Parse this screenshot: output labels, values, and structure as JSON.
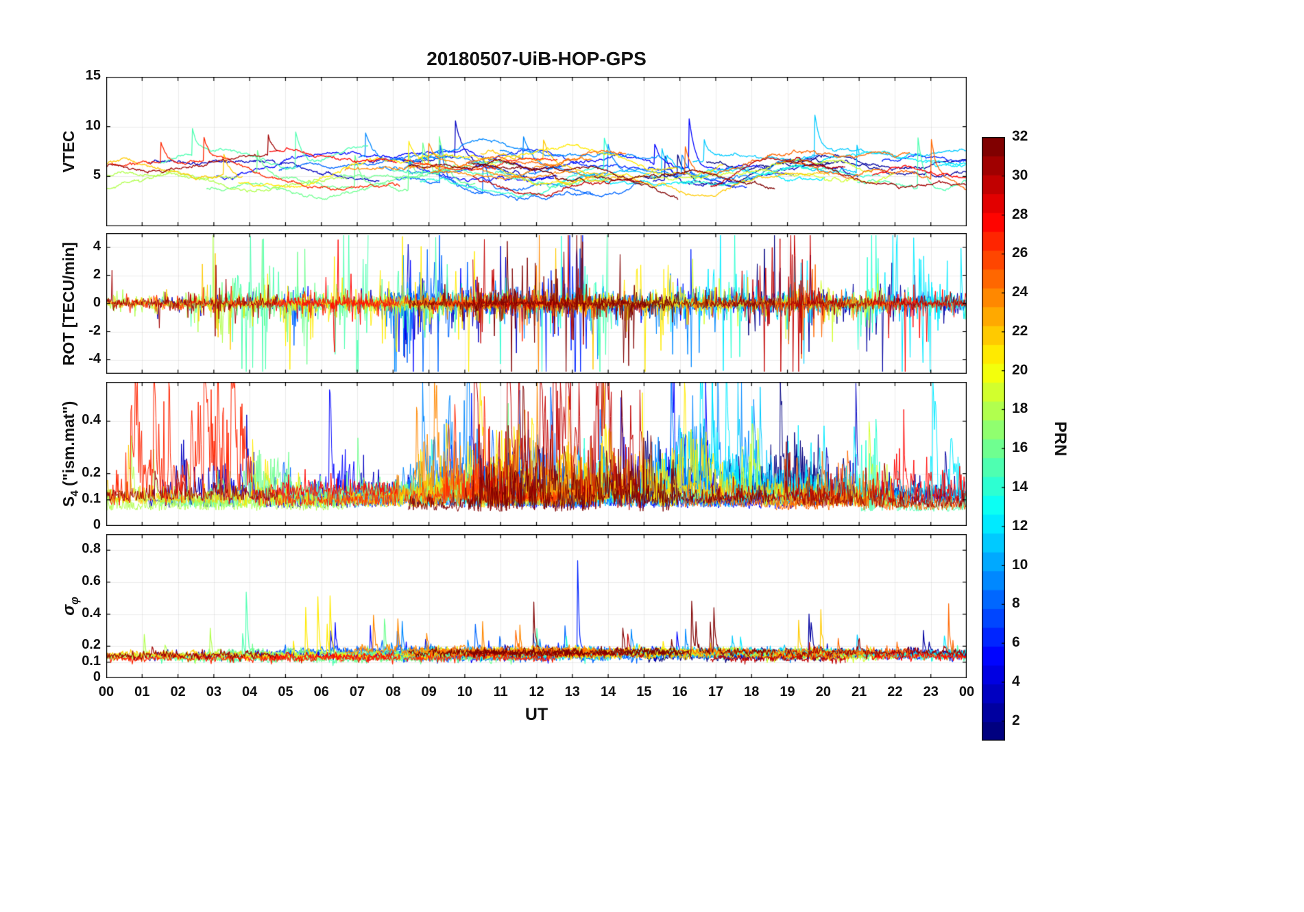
{
  "figure": {
    "title": "20180507-UiB-HOP-GPS",
    "xlabel": "UT",
    "x_ticks": {
      "values": [
        0,
        1,
        2,
        3,
        4,
        5,
        6,
        7,
        8,
        9,
        10,
        11,
        12,
        13,
        14,
        15,
        16,
        17,
        18,
        19,
        20,
        21,
        22,
        23,
        24
      ],
      "labels": [
        "00",
        "01",
        "02",
        "03",
        "04",
        "05",
        "06",
        "07",
        "08",
        "09",
        "10",
        "11",
        "12",
        "13",
        "14",
        "15",
        "16",
        "17",
        "18",
        "19",
        "20",
        "21",
        "22",
        "23",
        "00"
      ]
    },
    "colorbar": {
      "label": "PRN",
      "min": 1,
      "max": 32,
      "tick_values": [
        2,
        4,
        6,
        8,
        10,
        12,
        14,
        16,
        18,
        20,
        22,
        24,
        26,
        28,
        30,
        32
      ],
      "colormap": "jet",
      "discrete_levels": 32
    },
    "prn_series": [
      1,
      2,
      3,
      5,
      6,
      8,
      9,
      11,
      12,
      14,
      15,
      16,
      18,
      19,
      21,
      22,
      24,
      25,
      27,
      28,
      30,
      31,
      32
    ]
  },
  "chart_data": [
    {
      "type": "line",
      "ylabel": {
        "pre": "VTEC",
        "sub": "",
        "post": ""
      },
      "xlim": [
        0,
        24
      ],
      "ylim": [
        0,
        15
      ],
      "ytick_values": [
        5,
        10,
        15
      ],
      "ytick_labels": [
        "5",
        "10",
        "15"
      ],
      "grid": true,
      "line_width": 1.3,
      "gen": {
        "kind": "vtec",
        "seed": 101,
        "dt": 0.02,
        "base": [
          4.2,
          7.0
        ],
        "spike_prob": 0.002,
        "spike_amp": [
          2.0,
          5.5
        ],
        "clip": [
          0.9,
          13.6
        ]
      }
    },
    {
      "type": "line",
      "ylabel": {
        "pre": "ROT [TECU/min]",
        "sub": "",
        "post": ""
      },
      "xlim": [
        0,
        24
      ],
      "ylim": [
        -5,
        5
      ],
      "ytick_values": [
        -4,
        -2,
        0,
        2,
        4
      ],
      "ytick_labels": [
        "-4",
        "-2",
        "0",
        "2",
        "4"
      ],
      "grid": true,
      "line_width": 1.0,
      "gen": {
        "kind": "rot",
        "seed": 202,
        "dt": 0.02,
        "amp": 0.16,
        "clip": [
          -4.85,
          4.85
        ]
      }
    },
    {
      "type": "line",
      "ylabel": {
        "pre": "S",
        "sub": "4",
        "post": " (\"ism.mat\")"
      },
      "xlim": [
        0,
        24
      ],
      "ylim": [
        0,
        0.55
      ],
      "ytick_values": [
        0,
        0.1,
        0.2,
        0.4
      ],
      "ytick_labels": [
        "0",
        "0.1",
        "0.2",
        "0.4"
      ],
      "grid": true,
      "line_width": 1.0,
      "gen": {
        "kind": "s4",
        "seed": 303,
        "dt": 0.02,
        "base": [
          0.055,
          0.115
        ],
        "noise": 0.03,
        "spike_prob": 0.02,
        "spike_amp": [
          0.06,
          0.5
        ],
        "clip": [
          0.03,
          0.548
        ]
      }
    },
    {
      "type": "line",
      "ylabel": {
        "pre": "σ",
        "sub": "φ",
        "post": ""
      },
      "xlim": [
        0,
        24
      ],
      "ylim": [
        0,
        0.9
      ],
      "ytick_values": [
        0,
        0.1,
        0.2,
        0.4,
        0.6,
        0.8
      ],
      "ytick_labels": [
        "0",
        "0.1",
        "0.2",
        "0.4",
        "0.6",
        "0.8"
      ],
      "grid": true,
      "line_width": 1.2,
      "gen": {
        "kind": "sigma",
        "seed": 404,
        "dt": 0.02,
        "base": [
          0.115,
          0.165
        ],
        "spike_prob": 0.006,
        "spike_amp": [
          0.05,
          0.6
        ],
        "clip": [
          0.06,
          0.88
        ]
      }
    }
  ]
}
